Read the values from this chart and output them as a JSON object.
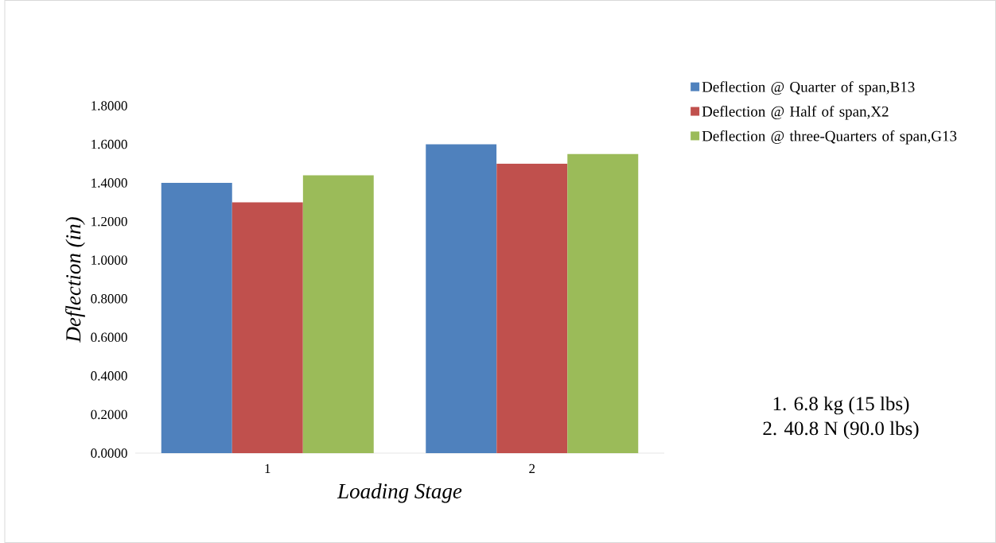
{
  "chart_data": {
    "type": "bar",
    "ylabel": "Deflection (in)",
    "xlabel": "Loading Stage",
    "categories": [
      "1",
      "2"
    ],
    "series": [
      {
        "name": "Deflection @ Quarter of span,B13",
        "color": "#4f81bd",
        "values": [
          1.4,
          1.6
        ]
      },
      {
        "name": "Deflection @ Half of span,X2",
        "color": "#c0504d",
        "values": [
          1.3,
          1.5
        ]
      },
      {
        "name": "Deflection @ three-Quarters of span,G13",
        "color": "#9bbb59",
        "values": [
          1.44,
          1.55
        ]
      }
    ],
    "ylim": [
      0,
      1.8
    ],
    "yticks": [
      {
        "value": 0,
        "label": "0.0000"
      },
      {
        "value": 0.2,
        "label": "0.2000"
      },
      {
        "value": 0.4,
        "label": "0.4000"
      },
      {
        "value": 0.6,
        "label": "0.6000"
      },
      {
        "value": 0.8,
        "label": "0.8000"
      },
      {
        "value": 1.0,
        "label": "1.0000"
      },
      {
        "value": 1.2,
        "label": "1.2000"
      },
      {
        "value": 1.4,
        "label": "1.4000"
      },
      {
        "value": 1.6,
        "label": "1.6000"
      },
      {
        "value": 1.8,
        "label": "1.8000"
      }
    ],
    "grid": false,
    "legend": "right",
    "annotations": [
      "1. 6.8 kg (15 lbs)",
      "2. 40.8 N (90.0 lbs)"
    ]
  }
}
